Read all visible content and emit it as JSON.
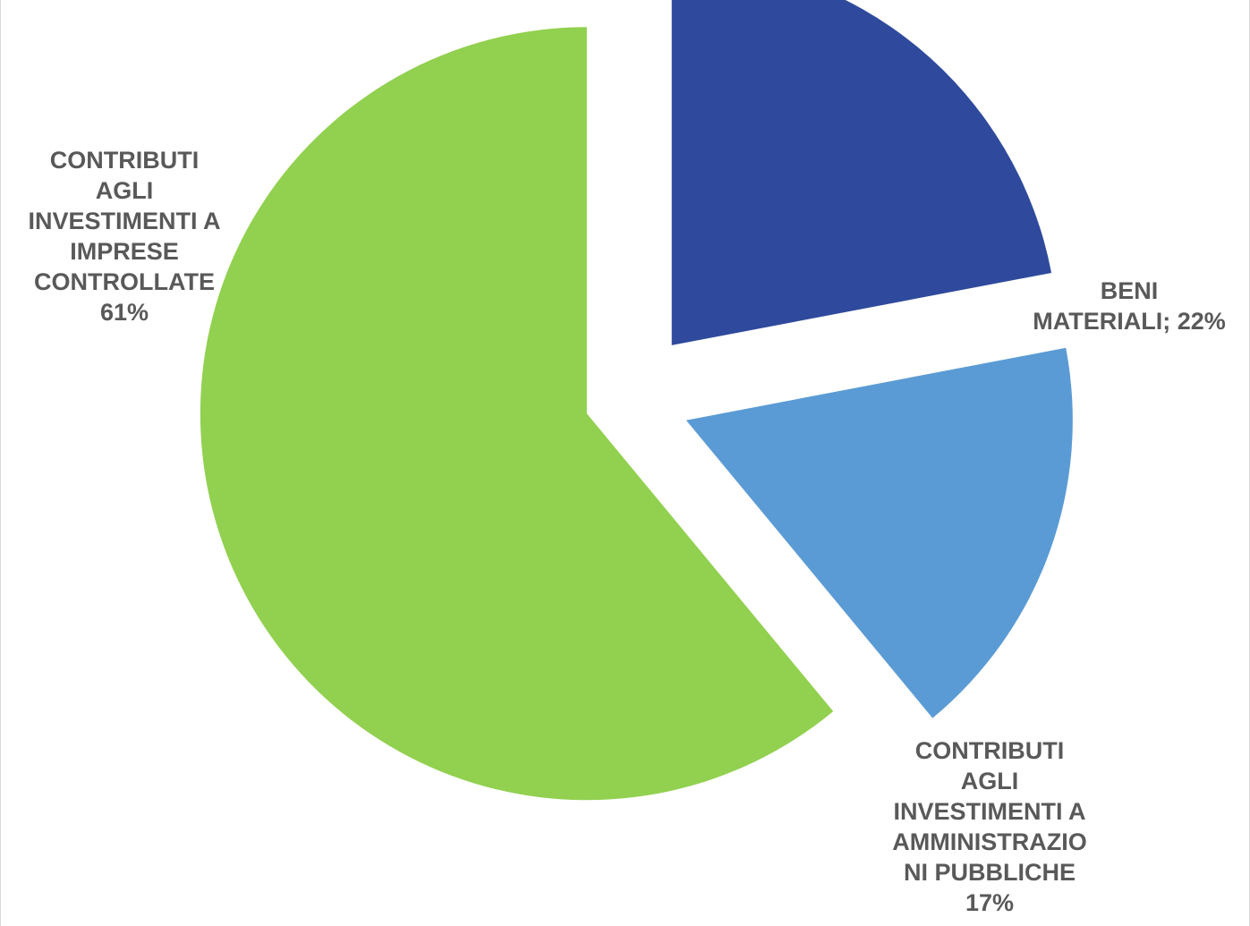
{
  "chart_data": {
    "type": "pie",
    "title": "",
    "exploded": true,
    "start_angle_deg": 0,
    "direction": "clockwise",
    "slices": [
      {
        "name": "BENI MATERIALI",
        "value": 22,
        "value_label": "22%",
        "label_lines": [
          "BENI",
          "MATERIALI; 22%"
        ],
        "color": "#2f4a9c"
      },
      {
        "name": "CONTRIBUTI AGLI INVESTIMENTI A AMMINISTRAZIONI PUBBLICHE",
        "value": 17,
        "value_label": "17%",
        "label_lines": [
          "CONTRIBUTI",
          "AGLI",
          "INVESTIMENTI A",
          "AMMINISTRAZIO",
          "NI PUBBLICHE",
          "17%"
        ],
        "color": "#5b9bd5"
      },
      {
        "name": "CONTRIBUTI AGLI INVESTIMENTI A IMPRESE CONTROLLATE",
        "value": 61,
        "value_label": "61%",
        "label_lines": [
          "CONTRIBUTI",
          "AGLI",
          "INVESTIMENTI A",
          "IMPRESE",
          "CONTROLLATE",
          "61%"
        ],
        "color": "#92d050"
      }
    ],
    "legend": "none",
    "data_labels": "outside",
    "label_color": "#595959"
  }
}
